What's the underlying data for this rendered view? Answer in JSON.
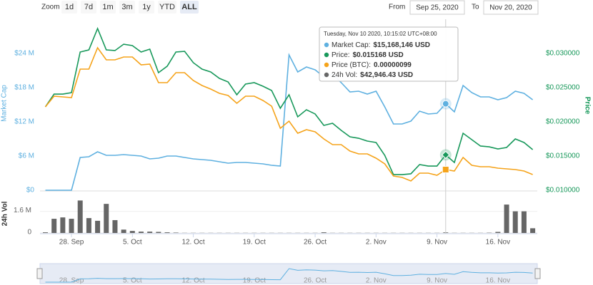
{
  "range_selector": {
    "zoom_label": "Zoom",
    "buttons": [
      "1d",
      "7d",
      "1m",
      "3m",
      "1y",
      "YTD",
      "ALL"
    ],
    "selected": "ALL",
    "from_label": "From",
    "from": "Sep 25, 2020",
    "to_label": "To",
    "to": "Nov 20, 2020"
  },
  "chart_data": {
    "type": "line",
    "ylabel": "Market Cap",
    "y2label": "Price",
    "vol_ylabel": "24h Vol",
    "x": [
      "2020-09-25",
      "2020-09-26",
      "2020-09-27",
      "2020-09-28",
      "2020-09-29",
      "2020-09-30",
      "2020-10-01",
      "2020-10-02",
      "2020-10-03",
      "2020-10-04",
      "2020-10-05",
      "2020-10-06",
      "2020-10-07",
      "2020-10-08",
      "2020-10-09",
      "2020-10-10",
      "2020-10-11",
      "2020-10-12",
      "2020-10-13",
      "2020-10-14",
      "2020-10-15",
      "2020-10-16",
      "2020-10-17",
      "2020-10-18",
      "2020-10-19",
      "2020-10-20",
      "2020-10-21",
      "2020-10-22",
      "2020-10-23",
      "2020-10-24",
      "2020-10-25",
      "2020-10-26",
      "2020-10-27",
      "2020-10-28",
      "2020-10-29",
      "2020-10-30",
      "2020-10-31",
      "2020-11-01",
      "2020-11-02",
      "2020-11-03",
      "2020-11-04",
      "2020-11-05",
      "2020-11-06",
      "2020-11-07",
      "2020-11-08",
      "2020-11-09",
      "2020-11-10",
      "2020-11-11",
      "2020-11-12",
      "2020-11-13",
      "2020-11-14",
      "2020-11-15",
      "2020-11-16",
      "2020-11-17",
      "2020-11-18",
      "2020-11-19",
      "2020-11-20"
    ],
    "xlim": [
      "2020-09-25",
      "2020-11-20"
    ],
    "xticks": [
      {
        "value": "2020-09-28",
        "label": "28. Sep"
      },
      {
        "value": "2020-10-05",
        "label": "5. Oct"
      },
      {
        "value": "2020-10-12",
        "label": "12. Oct"
      },
      {
        "value": "2020-10-19",
        "label": "19. Oct"
      },
      {
        "value": "2020-10-26",
        "label": "26. Oct"
      },
      {
        "value": "2020-11-02",
        "label": "2. Nov"
      },
      {
        "value": "2020-11-09",
        "label": "9. Nov"
      },
      {
        "value": "2020-11-16",
        "label": "16. Nov"
      }
    ],
    "ylim": [
      0,
      30000000
    ],
    "yticks": [
      {
        "value": 0,
        "label": "$0"
      },
      {
        "value": 6000000,
        "label": "$6 M"
      },
      {
        "value": 12000000,
        "label": "$12 M"
      },
      {
        "value": 18000000,
        "label": "$18 M"
      },
      {
        "value": 24000000,
        "label": "$24 M"
      }
    ],
    "y2lim": [
      0.01,
      0.035
    ],
    "y2ticks": [
      {
        "value": 0.01,
        "label": "$0.010000"
      },
      {
        "value": 0.015,
        "label": "$0.015000"
      },
      {
        "value": 0.02,
        "label": "$0.020000"
      },
      {
        "value": 0.025,
        "label": "$0.025000"
      },
      {
        "value": 0.03,
        "label": "$0.030000"
      }
    ],
    "y3lim": [
      7e-07,
      3.1e-06
    ],
    "vol_ylim": [
      0,
      3000000
    ],
    "vol_yticks": [
      0,
      {
        "value": 1600000,
        "label": "1.6 M"
      }
    ],
    "series": [
      {
        "name": "Market Cap:",
        "color": "#5eb0e0",
        "axis": "y",
        "values": [
          0,
          0,
          0,
          0,
          5750000,
          5875000,
          6750000,
          6125000,
          6125000,
          6250000,
          6125000,
          6000000,
          5500000,
          5625000,
          6000000,
          6000000,
          5750000,
          5500000,
          5375000,
          5250000,
          5000000,
          4750000,
          4875000,
          4875000,
          4750000,
          4625000,
          4375000,
          4250000,
          23750000,
          20750000,
          21625000,
          21125000,
          19875000,
          20375000,
          18875000,
          17250000,
          17375000,
          16875000,
          17375000,
          14625000,
          11625000,
          11625000,
          12125000,
          13875000,
          13375000,
          13500000,
          15168146,
          13750000,
          18375000,
          17125000,
          16375000,
          16375000,
          15875000,
          16250000,
          17375000,
          17000000,
          15875000
        ]
      },
      {
        "name": "Price:",
        "color": "#17985a",
        "axis": "y2",
        "values": [
          0.02219,
          0.02406,
          0.02406,
          0.02427,
          0.03021,
          0.03052,
          0.03365,
          0.03052,
          0.03042,
          0.03135,
          0.03115,
          0.03021,
          0.03063,
          0.02719,
          0.02813,
          0.03021,
          0.03031,
          0.02865,
          0.02771,
          0.02729,
          0.02635,
          0.02583,
          0.02396,
          0.02552,
          0.02573,
          0.02521,
          0.02458,
          0.02198,
          0.02396,
          0.02073,
          0.02177,
          0.02115,
          0.01948,
          0.01979,
          0.01875,
          0.01781,
          0.0176,
          0.01719,
          0.01698,
          0.0151,
          0.01229,
          0.01229,
          0.0124,
          0.01375,
          0.01354,
          0.01354,
          0.015168,
          0.01406,
          0.01833,
          0.0174,
          0.01646,
          0.01635,
          0.01604,
          0.01625,
          0.0175,
          0.01698,
          0.01594
        ]
      },
      {
        "name": "Price (BTC):",
        "color": "#f5a31a",
        "axis": "y3",
        "values": [
          1.87e-06,
          2.02e-06,
          2.01e-06,
          2e-06,
          2.4e-06,
          2.4e-06,
          2.7e-06,
          2.53e-06,
          2.53e-06,
          2.57e-06,
          2.57e-06,
          2.46e-06,
          2.47e-06,
          2.21e-06,
          2.21e-06,
          2.35e-06,
          2.35e-06,
          2.24e-06,
          2.17e-06,
          2.12e-06,
          2.06e-06,
          2.03e-06,
          1.92e-06,
          2.02e-06,
          2.02e-06,
          1.96e-06,
          1.88e-06,
          1.57e-06,
          1.67e-06,
          1.5e-06,
          1.55e-06,
          1.52e-06,
          1.42e-06,
          1.34e-06,
          1.34e-06,
          1.25e-06,
          1.21e-06,
          1.21e-06,
          1.15e-06,
          1.07e-06,
          9e-07,
          8.8e-07,
          8.3e-07,
          9.4e-07,
          9.4e-07,
          9.1e-07,
          9.9e-07,
          9.7e-07,
          1.16e-06,
          1.05e-06,
          1.03e-06,
          1.03e-06,
          1.01e-06,
          1e-06,
          9.9e-07,
          9.7e-07,
          9.2e-07
        ]
      },
      {
        "name": "24h Vol:",
        "color": "#666666",
        "axis": "vol",
        "type": "bar",
        "values": [
          50000,
          1050000,
          1150000,
          1050000,
          2400000,
          1100000,
          900000,
          2150000,
          950000,
          250000,
          150000,
          100000,
          100000,
          80000,
          50000,
          30000,
          10000,
          10000,
          10000,
          10000,
          10000,
          10000,
          10000,
          10000,
          10000,
          10000,
          10000,
          10000,
          10000,
          10000,
          10000,
          10000,
          50000,
          10000,
          10000,
          10000,
          10000,
          10000,
          10000,
          10000,
          10000,
          10000,
          10000,
          10000,
          10000,
          10000,
          42946.43,
          10000,
          10000,
          10000,
          10000,
          20000,
          80000,
          2100000,
          1600000,
          1600000,
          350000
        ]
      }
    ],
    "tooltip": {
      "header": "Tuesday, Nov 10 2020, 10:15:02 UTC+08:00",
      "values": [
        "$15,168,146 USD",
        "$0.015168 USD",
        "0.00000099",
        "$42,946.43 USD"
      ]
    }
  }
}
